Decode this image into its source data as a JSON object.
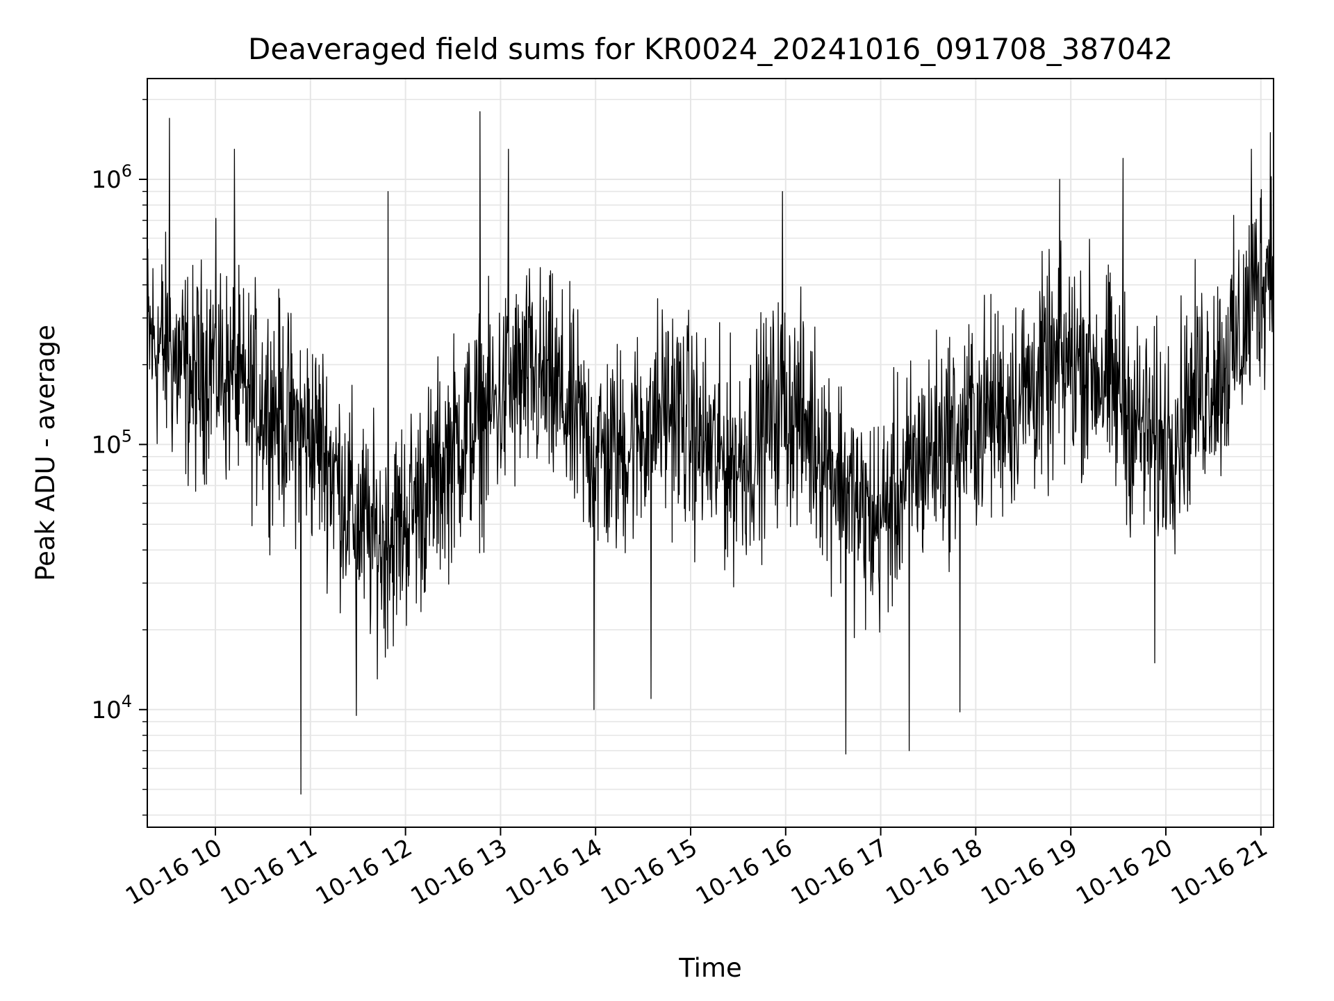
{
  "chart_data": {
    "type": "line",
    "title": "Deaveraged field sums for KR0024_20241016_091708_387042",
    "xlabel": "Time",
    "ylabel": "Peak ADU - average",
    "yscale": "log",
    "ylim": [
      3600,
      2400000
    ],
    "xlim": [
      "2024-10-16 09:17",
      "2024-10-16 21:08"
    ],
    "grid": true,
    "line_color": "#000000",
    "x_ticks": [
      "10-16 10",
      "10-16 11",
      "10-16 12",
      "10-16 13",
      "10-16 14",
      "10-16 15",
      "10-16 16",
      "10-16 17",
      "10-16 18",
      "10-16 19",
      "10-16 20",
      "10-16 21"
    ],
    "y_ticks": [
      {
        "value": 10000,
        "base": "10",
        "exp": "4"
      },
      {
        "value": 100000,
        "base": "10",
        "exp": "5"
      },
      {
        "value": 1000000,
        "base": "10",
        "exp": "6"
      }
    ],
    "series": [
      {
        "x": [
          "09:17",
          "09:27",
          "09:37",
          "09:47",
          "09:57",
          "10:07",
          "10:17",
          "10:27",
          "10:37",
          "10:47",
          "10:57",
          "11:07",
          "11:17",
          "11:27",
          "11:37",
          "11:47",
          "11:57",
          "12:07",
          "12:17",
          "12:27",
          "12:37",
          "12:47",
          "12:57",
          "13:07",
          "13:17",
          "13:27",
          "13:37",
          "13:47",
          "13:57",
          "14:07",
          "14:17",
          "14:27",
          "14:37",
          "14:47",
          "14:57",
          "15:07",
          "15:17",
          "15:27",
          "15:37",
          "15:47",
          "15:57",
          "16:07",
          "16:17",
          "16:27",
          "16:37",
          "16:47",
          "16:57",
          "17:07",
          "17:17",
          "17:27",
          "17:37",
          "17:47",
          "17:57",
          "18:07",
          "18:17",
          "18:27",
          "18:37",
          "18:47",
          "18:57",
          "19:07",
          "19:17",
          "19:27",
          "19:37",
          "19:47",
          "19:57",
          "20:07",
          "20:17",
          "20:27",
          "20:37",
          "20:47",
          "20:57",
          "21:07"
        ],
        "values": [
          250000,
          230000,
          200000,
          170000,
          220000,
          180000,
          150000,
          150000,
          140000,
          120000,
          110000,
          100000,
          75000,
          55000,
          45000,
          42000,
          50000,
          60000,
          70000,
          90000,
          110000,
          120000,
          140000,
          160000,
          180000,
          170000,
          150000,
          120000,
          100000,
          90000,
          95000,
          110000,
          130000,
          140000,
          120000,
          100000,
          90000,
          85000,
          95000,
          120000,
          140000,
          130000,
          110000,
          90000,
          70000,
          55000,
          50000,
          60000,
          75000,
          90000,
          100000,
          110000,
          120000,
          130000,
          140000,
          150000,
          170000,
          180000,
          200000,
          210000,
          190000,
          160000,
          130000,
          110000,
          100000,
          120000,
          150000,
          180000,
          200000,
          250000,
          400000,
          500000
        ]
      }
    ],
    "envelope": {
      "upper_ratio": 4,
      "lower_ratio": 0.25,
      "spikes": [
        {
          "x": "09:31",
          "value": 1700000
        },
        {
          "x": "10:12",
          "value": 1300000
        },
        {
          "x": "10:54",
          "value": 4800
        },
        {
          "x": "11:29",
          "value": 9500
        },
        {
          "x": "11:49",
          "value": 900000
        },
        {
          "x": "12:47",
          "value": 1800000
        },
        {
          "x": "13:05",
          "value": 1300000
        },
        {
          "x": "13:59",
          "value": 10000
        },
        {
          "x": "14:35",
          "value": 11000
        },
        {
          "x": "15:58",
          "value": 900000
        },
        {
          "x": "16:38",
          "value": 6800
        },
        {
          "x": "17:18",
          "value": 7000
        },
        {
          "x": "17:50",
          "value": 9800
        },
        {
          "x": "18:53",
          "value": 1000000
        },
        {
          "x": "19:33",
          "value": 1200000
        },
        {
          "x": "19:53",
          "value": 15000
        },
        {
          "x": "20:54",
          "value": 1300000
        },
        {
          "x": "21:06",
          "value": 1500000
        }
      ]
    }
  }
}
